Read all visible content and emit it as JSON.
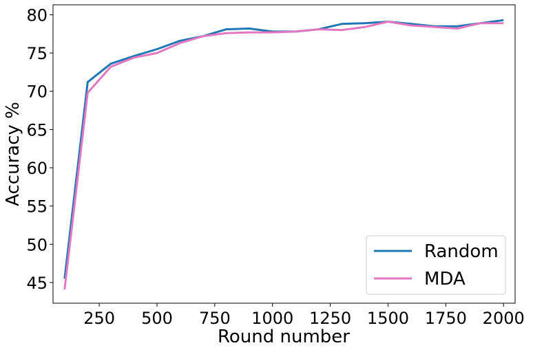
{
  "chart_data": {
    "type": "line",
    "title": "",
    "xlabel": "Round number",
    "ylabel": "Accuracy %",
    "xlim": [
      50,
      2050
    ],
    "ylim": [
      42.3,
      81.3
    ],
    "x_ticks": [
      250,
      500,
      750,
      1000,
      1250,
      1500,
      1750,
      2000
    ],
    "y_ticks": [
      45,
      50,
      55,
      60,
      65,
      70,
      75,
      80
    ],
    "grid": false,
    "legend_position": "lower-right",
    "x": [
      100,
      200,
      300,
      400,
      500,
      600,
      700,
      800,
      900,
      1000,
      1100,
      1200,
      1300,
      1400,
      1500,
      1600,
      1700,
      1800,
      1900,
      2000
    ],
    "series": [
      {
        "name": "Random",
        "color": "#1f77b4",
        "values": [
          45.5,
          71.2,
          73.6,
          74.6,
          75.5,
          76.6,
          77.2,
          78.1,
          78.2,
          77.8,
          77.8,
          78.1,
          78.8,
          78.9,
          79.1,
          78.8,
          78.5,
          78.5,
          78.9,
          79.3
        ]
      },
      {
        "name": "MDA",
        "color": "#e377c2",
        "values": [
          44.1,
          69.8,
          73.2,
          74.4,
          75.0,
          76.3,
          77.2,
          77.6,
          77.7,
          77.7,
          77.8,
          78.1,
          78.0,
          78.4,
          79.1,
          78.6,
          78.4,
          78.2,
          78.9,
          78.9
        ]
      }
    ]
  }
}
